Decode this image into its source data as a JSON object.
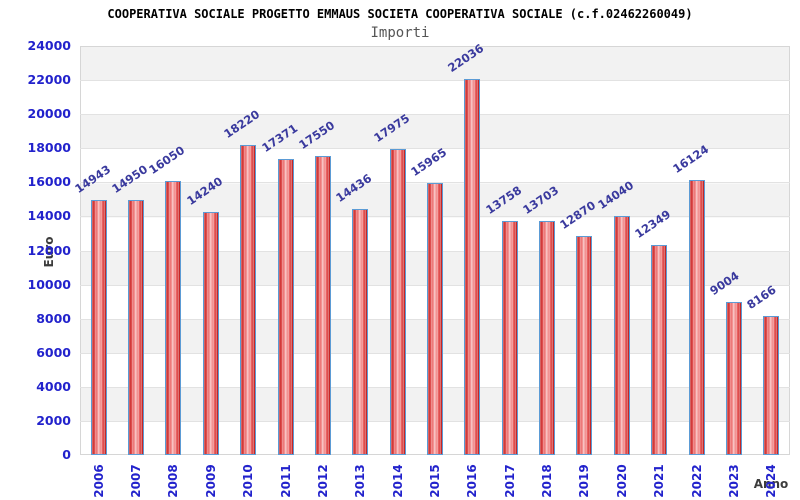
{
  "chart_data": {
    "type": "bar",
    "title": "COOPERATIVA SOCIALE PROGETTO EMMAUS SOCIETA COOPERATIVA SOCIALE (c.f.02462260049)",
    "subtitle": "Importi",
    "xlabel": "Anno",
    "ylabel": "Euro",
    "categories": [
      "2006",
      "2007",
      "2008",
      "2009",
      "2010",
      "2011",
      "2012",
      "2013",
      "2014",
      "2015",
      "2016",
      "2017",
      "2018",
      "2019",
      "2020",
      "2021",
      "2022",
      "2023",
      "2024"
    ],
    "values": [
      14943,
      14950,
      16050,
      14240,
      18220,
      17371,
      17550,
      14436,
      17975,
      15965,
      22036,
      13758,
      13703,
      12870,
      14040,
      12349,
      16124,
      9004,
      8166
    ],
    "ylim": [
      0,
      24000
    ],
    "yticks": [
      0,
      2000,
      4000,
      6000,
      8000,
      10000,
      12000,
      14000,
      16000,
      18000,
      20000,
      22000,
      24000
    ],
    "grid": true,
    "legend": "none",
    "colors": {
      "bar_fill": "#d43a3a",
      "bar_border": "#5b9bd5",
      "axis_tick_text": "#2222cc",
      "value_label_text": "#3a3a9e",
      "axis_name_text": "#3c3c3c",
      "band_gray": "#f2f2f2",
      "band_white": "#ffffff",
      "gridline": "#e2e2e2",
      "title_text": "#000000",
      "subtitle_text": "#555555"
    }
  }
}
